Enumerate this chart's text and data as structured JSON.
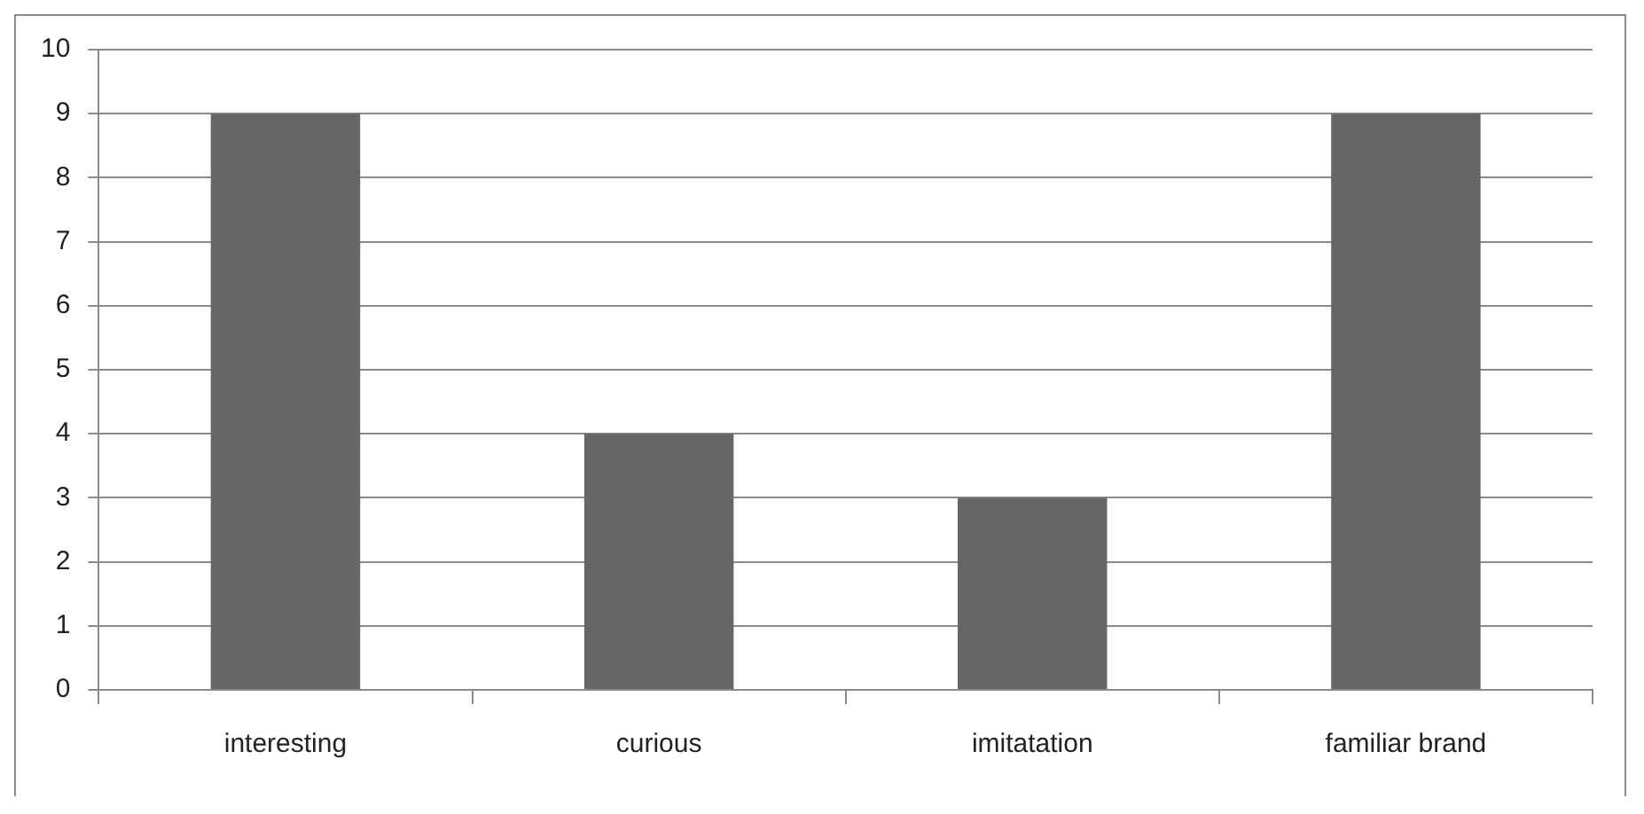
{
  "chart_data": {
    "type": "bar",
    "categories": [
      "interesting",
      "curious",
      "imitatation",
      "familiar brand"
    ],
    "values": [
      9,
      4,
      3,
      9
    ],
    "color": "#666666",
    "ylim": [
      0,
      10
    ],
    "yticks": [
      0,
      1,
      2,
      3,
      4,
      5,
      6,
      7,
      8,
      9,
      10
    ],
    "grid": "y"
  }
}
